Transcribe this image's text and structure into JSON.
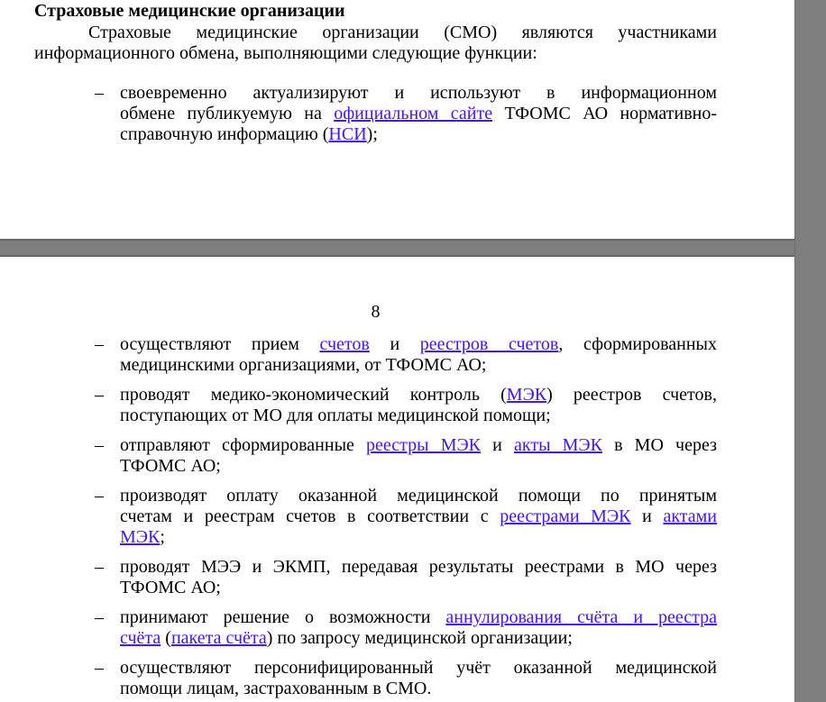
{
  "viewer": {
    "background_color": "#7e7e7e",
    "page_color": "#ffffff",
    "text_color": "#000000",
    "link_color": "#4316fb",
    "list_marker": "–"
  },
  "page1": {
    "heading": "Страховые медицинские организации",
    "paragraph_lines": [
      [
        {
          "t": "Страховые медицинские организации (СМО) являются участниками"
        }
      ],
      [
        {
          "t": "информационного обмена, выполняющими следующие функции:"
        }
      ]
    ],
    "list": [
      {
        "lines": [
          [
            {
              "t": "своевременно актуализируют и используют в информационном"
            }
          ],
          [
            {
              "t": "обмене публикуемую на "
            },
            {
              "t": "официальном сайте",
              "link": true
            },
            {
              "t": " ТФОМС АО нормативно-"
            }
          ],
          [
            {
              "t": "справочную информацию ("
            },
            {
              "t": "НСИ",
              "link": true
            },
            {
              "t": ");"
            }
          ]
        ]
      }
    ]
  },
  "page2": {
    "page_number": "8",
    "list": [
      {
        "lines": [
          [
            {
              "t": "осуществляют прием "
            },
            {
              "t": "счетов",
              "link": true
            },
            {
              "t": " и "
            },
            {
              "t": "реестров счетов",
              "link": true
            },
            {
              "t": ", сформированных"
            }
          ],
          [
            {
              "t": "медицинскими организациями, от ТФОМС АО;"
            }
          ]
        ]
      },
      {
        "lines": [
          [
            {
              "t": "проводят медико-экономический контроль ("
            },
            {
              "t": "МЭК",
              "link": true
            },
            {
              "t": ") реестров счетов,"
            }
          ],
          [
            {
              "t": "поступающих от МО для оплаты медицинской помощи;"
            }
          ]
        ]
      },
      {
        "lines": [
          [
            {
              "t": "отправляют сформированные "
            },
            {
              "t": "реестры МЭК",
              "link": true
            },
            {
              "t": " и "
            },
            {
              "t": "акты МЭК",
              "link": true
            },
            {
              "t": " в МО через"
            }
          ],
          [
            {
              "t": "ТФОМС АО;"
            }
          ]
        ]
      },
      {
        "lines": [
          [
            {
              "t": "производят оплату оказанной медицинской помощи по принятым"
            }
          ],
          [
            {
              "t": "счетам и реестрам счетов в соответствии с "
            },
            {
              "t": "реестрами МЭК",
              "link": true
            },
            {
              "t": " и "
            },
            {
              "t": "актами",
              "link": true
            }
          ],
          [
            {
              "t": "МЭК",
              "link": true
            },
            {
              "t": ";"
            }
          ]
        ]
      },
      {
        "lines": [
          [
            {
              "t": "проводят МЭЭ и ЭКМП, передавая результаты реестрами в МО через"
            }
          ],
          [
            {
              "t": "ТФОМС АО;"
            }
          ]
        ]
      },
      {
        "lines": [
          [
            {
              "t": "принимают решение о возможности "
            },
            {
              "t": "аннулирования счёта и реестра",
              "link": true
            }
          ],
          [
            {
              "t": "счёта",
              "link": true
            },
            {
              "t": " ("
            },
            {
              "t": "пакета счёта",
              "link": true
            },
            {
              "t": ") по запросу медицинской организации;"
            }
          ]
        ]
      },
      {
        "lines": [
          [
            {
              "t": "осуществляют персонифицированный учёт оказанной медицинской"
            }
          ],
          [
            {
              "t": "помощи лицам, застрахованным в СМО."
            }
          ]
        ]
      }
    ]
  }
}
